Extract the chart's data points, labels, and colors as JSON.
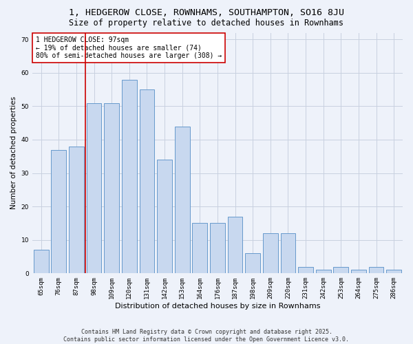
{
  "title": "1, HEDGEROW CLOSE, ROWNHAMS, SOUTHAMPTON, SO16 8JU",
  "subtitle": "Size of property relative to detached houses in Rownhams",
  "xlabel": "Distribution of detached houses by size in Rownhams",
  "ylabel": "Number of detached properties",
  "categories": [
    "65sqm",
    "76sqm",
    "87sqm",
    "98sqm",
    "109sqm",
    "120sqm",
    "131sqm",
    "142sqm",
    "153sqm",
    "164sqm",
    "176sqm",
    "187sqm",
    "198sqm",
    "209sqm",
    "220sqm",
    "231sqm",
    "242sqm",
    "253sqm",
    "264sqm",
    "275sqm",
    "286sqm"
  ],
  "values": [
    7,
    37,
    38,
    51,
    51,
    58,
    55,
    34,
    44,
    15,
    15,
    17,
    6,
    12,
    12,
    2,
    1,
    2,
    1,
    2,
    1
  ],
  "bar_color": "#c8d8ef",
  "bar_edge_color": "#6699cc",
  "background_color": "#eef2fa",
  "grid_color": "#c8d0e0",
  "vline_x_index": 3,
  "vline_color": "#cc0000",
  "annotation_text": "1 HEDGEROW CLOSE: 97sqm\n← 19% of detached houses are smaller (74)\n80% of semi-detached houses are larger (308) →",
  "annotation_box_color": "#ffffff",
  "annotation_box_edge": "#cc0000",
  "ylim": [
    0,
    72
  ],
  "yticks": [
    0,
    10,
    20,
    30,
    40,
    50,
    60,
    70
  ],
  "footer": "Contains HM Land Registry data © Crown copyright and database right 2025.\nContains public sector information licensed under the Open Government Licence v3.0.",
  "title_fontsize": 9.5,
  "subtitle_fontsize": 8.5,
  "xlabel_fontsize": 8,
  "ylabel_fontsize": 7.5,
  "tick_fontsize": 6.5,
  "annotation_fontsize": 7,
  "footer_fontsize": 6
}
